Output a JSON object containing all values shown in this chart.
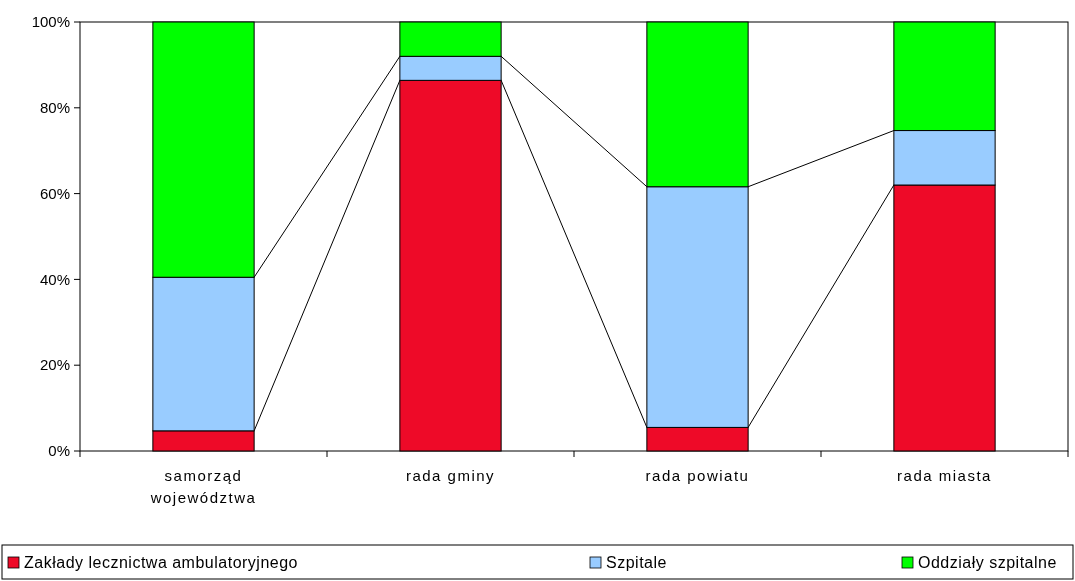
{
  "chart_data": {
    "type": "bar",
    "stacked": true,
    "categories": [
      "samorząd województwa",
      "rada gminy",
      "rada powiatu",
      "rada miasta"
    ],
    "series": [
      {
        "name": "Zakłady lecznictwa ambulatoryjnego",
        "color": "#ee0a28",
        "values": [
          4.7,
          86.4,
          5.5,
          62.0
        ]
      },
      {
        "name": "Szpitale",
        "color": "#99ccff",
        "values": [
          35.8,
          5.6,
          56.1,
          12.7
        ]
      },
      {
        "name": "Oddziały szpitalne",
        "color": "#00ff00",
        "values": [
          59.5,
          8.0,
          38.4,
          25.3
        ]
      }
    ],
    "ylim": [
      0,
      100
    ],
    "yticks": [
      {
        "value": 0,
        "label": "0%"
      },
      {
        "value": 20,
        "label": "20%"
      },
      {
        "value": 40,
        "label": "40%"
      },
      {
        "value": 60,
        "label": "60%"
      },
      {
        "value": 80,
        "label": "80%"
      },
      {
        "value": 100,
        "label": "100%"
      }
    ],
    "grid": false,
    "legend": "bottom"
  }
}
